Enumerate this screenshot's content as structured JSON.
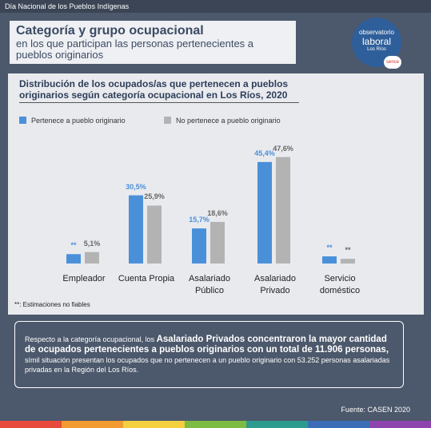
{
  "header": {
    "title": "Día Nacional de los Pueblos Indígenas"
  },
  "heading": {
    "title": "Categoría y grupo ocupacional",
    "subtitle": "en los que participan las personas pertenecientes a pueblos originarios"
  },
  "logo": {
    "line1": "observatorio",
    "line2": "laboral",
    "region": "Los Ríos",
    "brand": "sence"
  },
  "chart_data": {
    "type": "bar",
    "title": "Distribución de los ocupados/as que pertenecen a pueblos originarios según categoría ocupacional en Los Ríos, 2020",
    "categories": [
      "Empleador",
      "Cuenta Propia",
      "Asalariado Público",
      "Asalariado Privado",
      "Servicio doméstico"
    ],
    "series": [
      {
        "name": "Pertenece a pueblo originario",
        "color": "#4a90d9",
        "values": [
          4.2,
          30.5,
          15.7,
          45.4,
          3.2
        ],
        "value_labels": [
          "**",
          "30,5%",
          "15,7%",
          "45,4%",
          "**"
        ]
      },
      {
        "name": "No pertenece a pueblo originario",
        "color": "#b3b3b3",
        "values": [
          5.1,
          25.9,
          18.6,
          47.6,
          2.1
        ],
        "value_labels": [
          "5,1%",
          "25,9%",
          "18,6%",
          "47,6%",
          "**"
        ]
      }
    ],
    "ylim": [
      0,
      50
    ],
    "footnote": "**: Estimaciones no fiables"
  },
  "summary": {
    "segments": [
      {
        "text": "Respecto a la categoría ocupacional, los ",
        "bold": false
      },
      {
        "text": "Asalariado Privados concentraron la mayor cantidad de ocupados pertenecientes a pueblos originarios con un total de 11.906 personas,",
        "bold": true
      },
      {
        "text": " símil situación presentan los ocupados que no pertenecen a un pueblo originario con 53.252 personas asalariadas privadas en la Región del Los Ríos.",
        "bold": false
      }
    ]
  },
  "footer": {
    "source": "Fuente: CASEN 2020"
  }
}
